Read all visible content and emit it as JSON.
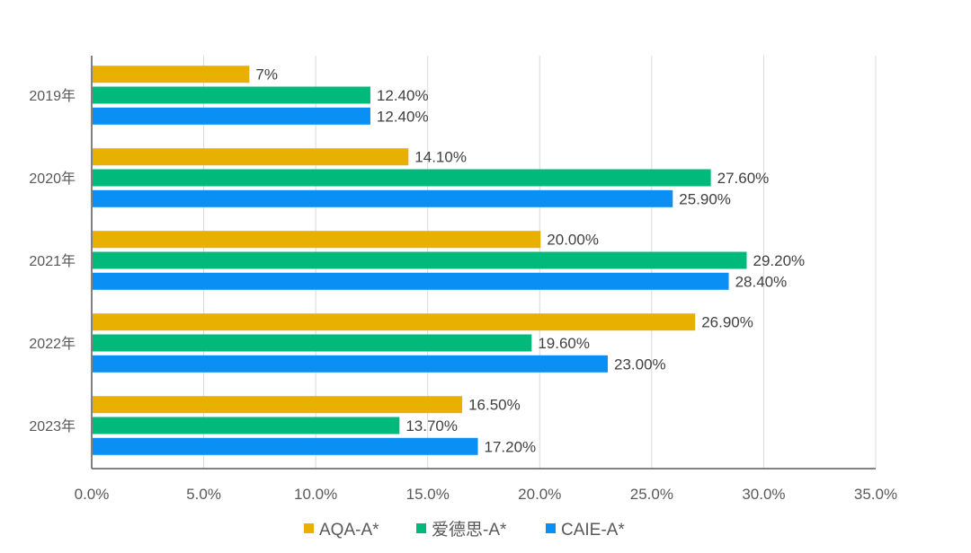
{
  "chart_data": {
    "type": "bar",
    "orientation": "horizontal",
    "title": "",
    "xlabel": "",
    "ylabel": "",
    "categories": [
      "2019年",
      "2020年",
      "2021年",
      "2022年",
      "2023年"
    ],
    "series": [
      {
        "name": "AQA-A*",
        "color": "#E8B000",
        "values": [
          7.0,
          14.1,
          20.0,
          26.9,
          16.5
        ],
        "labels": [
          "7%",
          "14.10%",
          "20.00%",
          "26.90%",
          "16.50%"
        ]
      },
      {
        "name": "爱德思-A*",
        "color": "#00B97A",
        "values": [
          12.4,
          27.6,
          29.2,
          19.6,
          13.7
        ],
        "labels": [
          "12.40%",
          "27.60%",
          "29.20%",
          "19.60%",
          "13.70%"
        ]
      },
      {
        "name": "CAIE-A*",
        "color": "#0A8FF5",
        "values": [
          12.4,
          25.9,
          28.4,
          23.0,
          17.2
        ],
        "labels": [
          "12.40%",
          "25.90%",
          "28.40%",
          "23.00%",
          "17.20%"
        ]
      }
    ],
    "xlim": [
      0,
      35
    ],
    "xticks": [
      "0.0%",
      "5.0%",
      "10.0%",
      "15.0%",
      "20.0%",
      "25.0%",
      "30.0%",
      "35.0%"
    ],
    "xtick_values": [
      0,
      5,
      10,
      15,
      20,
      25,
      30,
      35
    ],
    "grid": true,
    "legend_position": "bottom"
  }
}
